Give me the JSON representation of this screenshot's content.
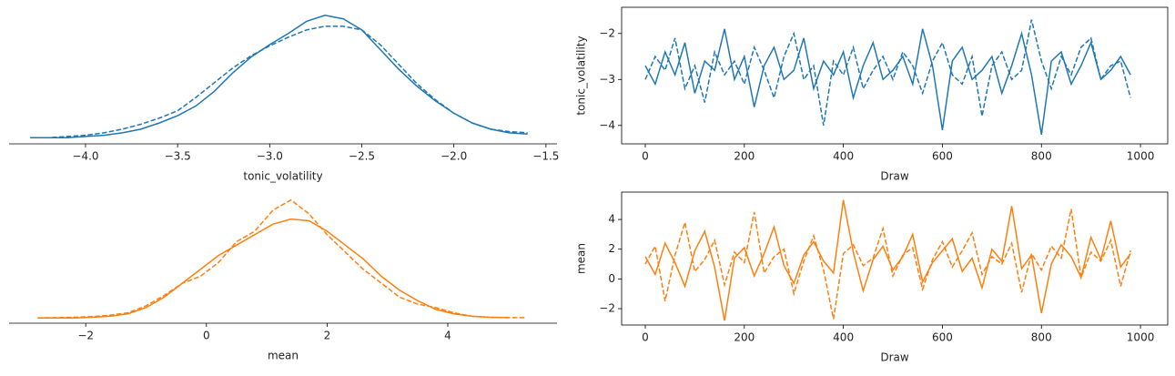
{
  "chart_data": [
    {
      "type": "line",
      "frame": false,
      "xlabel": "tonic_volatility",
      "x": [
        -4.3,
        -4.2,
        -4.1,
        -4.0,
        -3.9,
        -3.8,
        -3.7,
        -3.6,
        -3.5,
        -3.4,
        -3.3,
        -3.2,
        -3.1,
        -3.0,
        -2.9,
        -2.8,
        -2.7,
        -2.6,
        -2.5,
        -2.4,
        -2.3,
        -2.2,
        -2.1,
        -2.0,
        -1.9,
        -1.8,
        -1.7,
        -1.6
      ],
      "series": [
        {
          "color": "#1f77b4",
          "linestyle": "solid",
          "values": [
            0.0,
            0.0,
            0.0,
            0.01,
            0.02,
            0.04,
            0.07,
            0.12,
            0.18,
            0.26,
            0.38,
            0.53,
            0.66,
            0.76,
            0.85,
            0.95,
            1.0,
            0.97,
            0.88,
            0.72,
            0.56,
            0.42,
            0.3,
            0.2,
            0.12,
            0.07,
            0.04,
            0.03
          ]
        },
        {
          "color": "#1f77b4",
          "linestyle": "dashed",
          "values": [
            0,
            0,
            0.01,
            0.02,
            0.04,
            0.07,
            0.11,
            0.16,
            0.22,
            0.33,
            0.45,
            0.57,
            0.67,
            0.75,
            0.82,
            0.88,
            0.91,
            0.91,
            0.88,
            0.76,
            0.6,
            0.44,
            0.31,
            0.2,
            0.12,
            0.07,
            0.05,
            0.04
          ]
        }
      ],
      "xlim": [
        -4.415,
        -1.44
      ],
      "ylim": [
        -0.05,
        1.05
      ],
      "xticks": [
        {
          "value": -4.0,
          "label": "−4.0"
        },
        {
          "value": -3.5,
          "label": "−3.5"
        },
        {
          "value": -3.0,
          "label": "−3.0"
        },
        {
          "value": -2.5,
          "label": "−2.5"
        },
        {
          "value": -2.0,
          "label": "−2.0"
        },
        {
          "value": -1.5,
          "label": "−1.5"
        }
      ]
    },
    {
      "type": "line",
      "frame": true,
      "xlabel": "Draw",
      "ylabel": "tonic_volatility",
      "x": [
        0,
        20,
        40,
        60,
        80,
        100,
        120,
        140,
        160,
        180,
        200,
        220,
        240,
        260,
        280,
        300,
        320,
        340,
        360,
        380,
        400,
        420,
        440,
        460,
        480,
        500,
        520,
        540,
        560,
        580,
        600,
        620,
        640,
        660,
        680,
        700,
        720,
        740,
        760,
        780,
        800,
        820,
        840,
        860,
        880,
        900,
        920,
        940,
        960,
        980
      ],
      "series": [
        {
          "color": "#1f77b4",
          "linestyle": "solid",
          "values": [
            -2.7,
            -3.1,
            -2.4,
            -2.9,
            -2.2,
            -3.3,
            -2.6,
            -2.8,
            -1.9,
            -3.0,
            -2.5,
            -3.6,
            -2.7,
            -2.3,
            -3.0,
            -2.8,
            -2.1,
            -3.2,
            -2.6,
            -2.9,
            -2.4,
            -3.4,
            -2.7,
            -2.2,
            -3.0,
            -2.8,
            -2.5,
            -3.1,
            -1.9,
            -2.7,
            -4.1,
            -2.6,
            -2.3,
            -3.0,
            -2.8,
            -2.5,
            -3.3,
            -2.7,
            -2.0,
            -2.9,
            -4.2,
            -2.6,
            -2.4,
            -3.1,
            -2.7,
            -2.2,
            -3.0,
            -2.8,
            -2.5,
            -2.9
          ]
        },
        {
          "color": "#1f77b4",
          "linestyle": "dashed",
          "values": [
            -3.0,
            -2.5,
            -2.8,
            -2.1,
            -3.2,
            -2.7,
            -3.5,
            -2.4,
            -2.9,
            -2.6,
            -3.1,
            -2.3,
            -2.8,
            -3.4,
            -2.5,
            -2.0,
            -3.0,
            -2.7,
            -4.0,
            -2.6,
            -2.9,
            -2.3,
            -3.2,
            -2.8,
            -2.5,
            -3.0,
            -2.4,
            -2.7,
            -3.3,
            -2.6,
            -2.2,
            -2.9,
            -3.1,
            -2.5,
            -3.8,
            -2.7,
            -2.4,
            -3.0,
            -2.8,
            -1.7,
            -2.6,
            -3.2,
            -2.5,
            -2.9,
            -2.3,
            -2.1,
            -3.0,
            -2.7,
            -2.6,
            -3.4
          ]
        }
      ],
      "xlim": [
        -47.8,
        1055
      ],
      "ylim": [
        -4.4,
        -1.43
      ],
      "xticks": [
        0,
        200,
        400,
        600,
        800,
        1000
      ],
      "yticks": [
        {
          "value": -4,
          "label": "−4"
        },
        {
          "value": -3,
          "label": "−3"
        },
        {
          "value": -2,
          "label": "−2"
        }
      ]
    },
    {
      "type": "line",
      "frame": false,
      "xlabel": "mean",
      "x": [
        -2.8,
        -2.5,
        -2.2,
        -1.9,
        -1.6,
        -1.3,
        -1.0,
        -0.7,
        -0.4,
        -0.1,
        0.2,
        0.5,
        0.8,
        1.1,
        1.4,
        1.7,
        2.0,
        2.3,
        2.6,
        2.9,
        3.2,
        3.5,
        3.8,
        4.1,
        4.4,
        4.7,
        5.0,
        5.3
      ],
      "series": [
        {
          "color": "#ff7f0e",
          "linestyle": "solid",
          "values": [
            0,
            0,
            0,
            0.002,
            0.005,
            0.012,
            0.03,
            0.06,
            0.1,
            0.14,
            0.18,
            0.21,
            0.24,
            0.27,
            0.285,
            0.28,
            0.25,
            0.21,
            0.17,
            0.12,
            0.08,
            0.05,
            0.025,
            0.012,
            0.005,
            0.002,
            0.001,
            null
          ]
        },
        {
          "color": "#ff7f0e",
          "linestyle": "dashed",
          "values": [
            0,
            0.001,
            0.002,
            0.004,
            0.008,
            0.015,
            0.035,
            0.065,
            0.1,
            0.12,
            0.16,
            0.22,
            0.25,
            0.31,
            0.34,
            0.3,
            0.24,
            0.19,
            0.14,
            0.1,
            0.06,
            0.04,
            0.03,
            0.015,
            0.005,
            0.002,
            0.001,
            0.001
          ]
        }
      ],
      "xlim": [
        -3.27,
        5.81
      ],
      "ylim": [
        -0.015,
        0.36
      ],
      "xticks": [
        {
          "value": -2,
          "label": "−2"
        },
        0,
        2,
        4
      ]
    },
    {
      "type": "line",
      "frame": true,
      "xlabel": "Draw",
      "ylabel": "mean",
      "x": [
        0,
        20,
        40,
        60,
        80,
        100,
        120,
        140,
        160,
        180,
        200,
        220,
        240,
        260,
        280,
        300,
        320,
        340,
        360,
        380,
        400,
        420,
        440,
        460,
        480,
        500,
        520,
        540,
        560,
        580,
        600,
        620,
        640,
        660,
        680,
        700,
        720,
        740,
        760,
        780,
        800,
        820,
        840,
        860,
        880,
        900,
        920,
        940,
        960,
        980
      ],
      "series": [
        {
          "color": "#ff7f0e",
          "linestyle": "solid",
          "values": [
            1.5,
            0.3,
            2.4,
            1.1,
            -0.5,
            1.9,
            3.2,
            0.8,
            -2.8,
            1.4,
            2.1,
            0.2,
            1.7,
            3.5,
            0.9,
            -0.3,
            1.6,
            2.5,
            1.2,
            0.4,
            5.3,
            1.8,
            -0.8,
            1.3,
            2.2,
            0.6,
            1.5,
            3.0,
            -0.2,
            1.1,
            1.9,
            2.7,
            0.5,
            1.4,
            -0.6,
            2.0,
            1.2,
            4.9,
            0.7,
            1.6,
            -2.3,
            1.0,
            2.3,
            1.5,
            0.1,
            2.8,
            1.3,
            3.9,
            0.8,
            1.7
          ]
        },
        {
          "color": "#ff7f0e",
          "linestyle": "dashed",
          "values": [
            1.0,
            2.2,
            -1.5,
            1.6,
            3.8,
            0.5,
            1.3,
            2.6,
            -0.4,
            1.8,
            1.1,
            4.5,
            0.4,
            1.5,
            2.0,
            -1.0,
            1.2,
            2.9,
            0.6,
            -2.7,
            1.7,
            2.3,
            0.9,
            1.4,
            3.4,
            0.2,
            1.6,
            2.1,
            -0.7,
            1.3,
            2.5,
            0.8,
            1.9,
            3.1,
            0.3,
            1.5,
            1.0,
            2.4,
            -0.9,
            1.7,
            0.6,
            2.2,
            1.4,
            4.7,
            0.1,
            1.8,
            1.2,
            2.6,
            -0.5,
            1.9
          ]
        }
      ],
      "xlim": [
        -47.8,
        1055
      ],
      "ylim": [
        -3.1,
        5.84
      ],
      "xticks": [
        0,
        200,
        400,
        600,
        800,
        1000
      ],
      "yticks": [
        {
          "value": -2,
          "label": "−2"
        },
        0,
        2,
        4
      ]
    }
  ]
}
